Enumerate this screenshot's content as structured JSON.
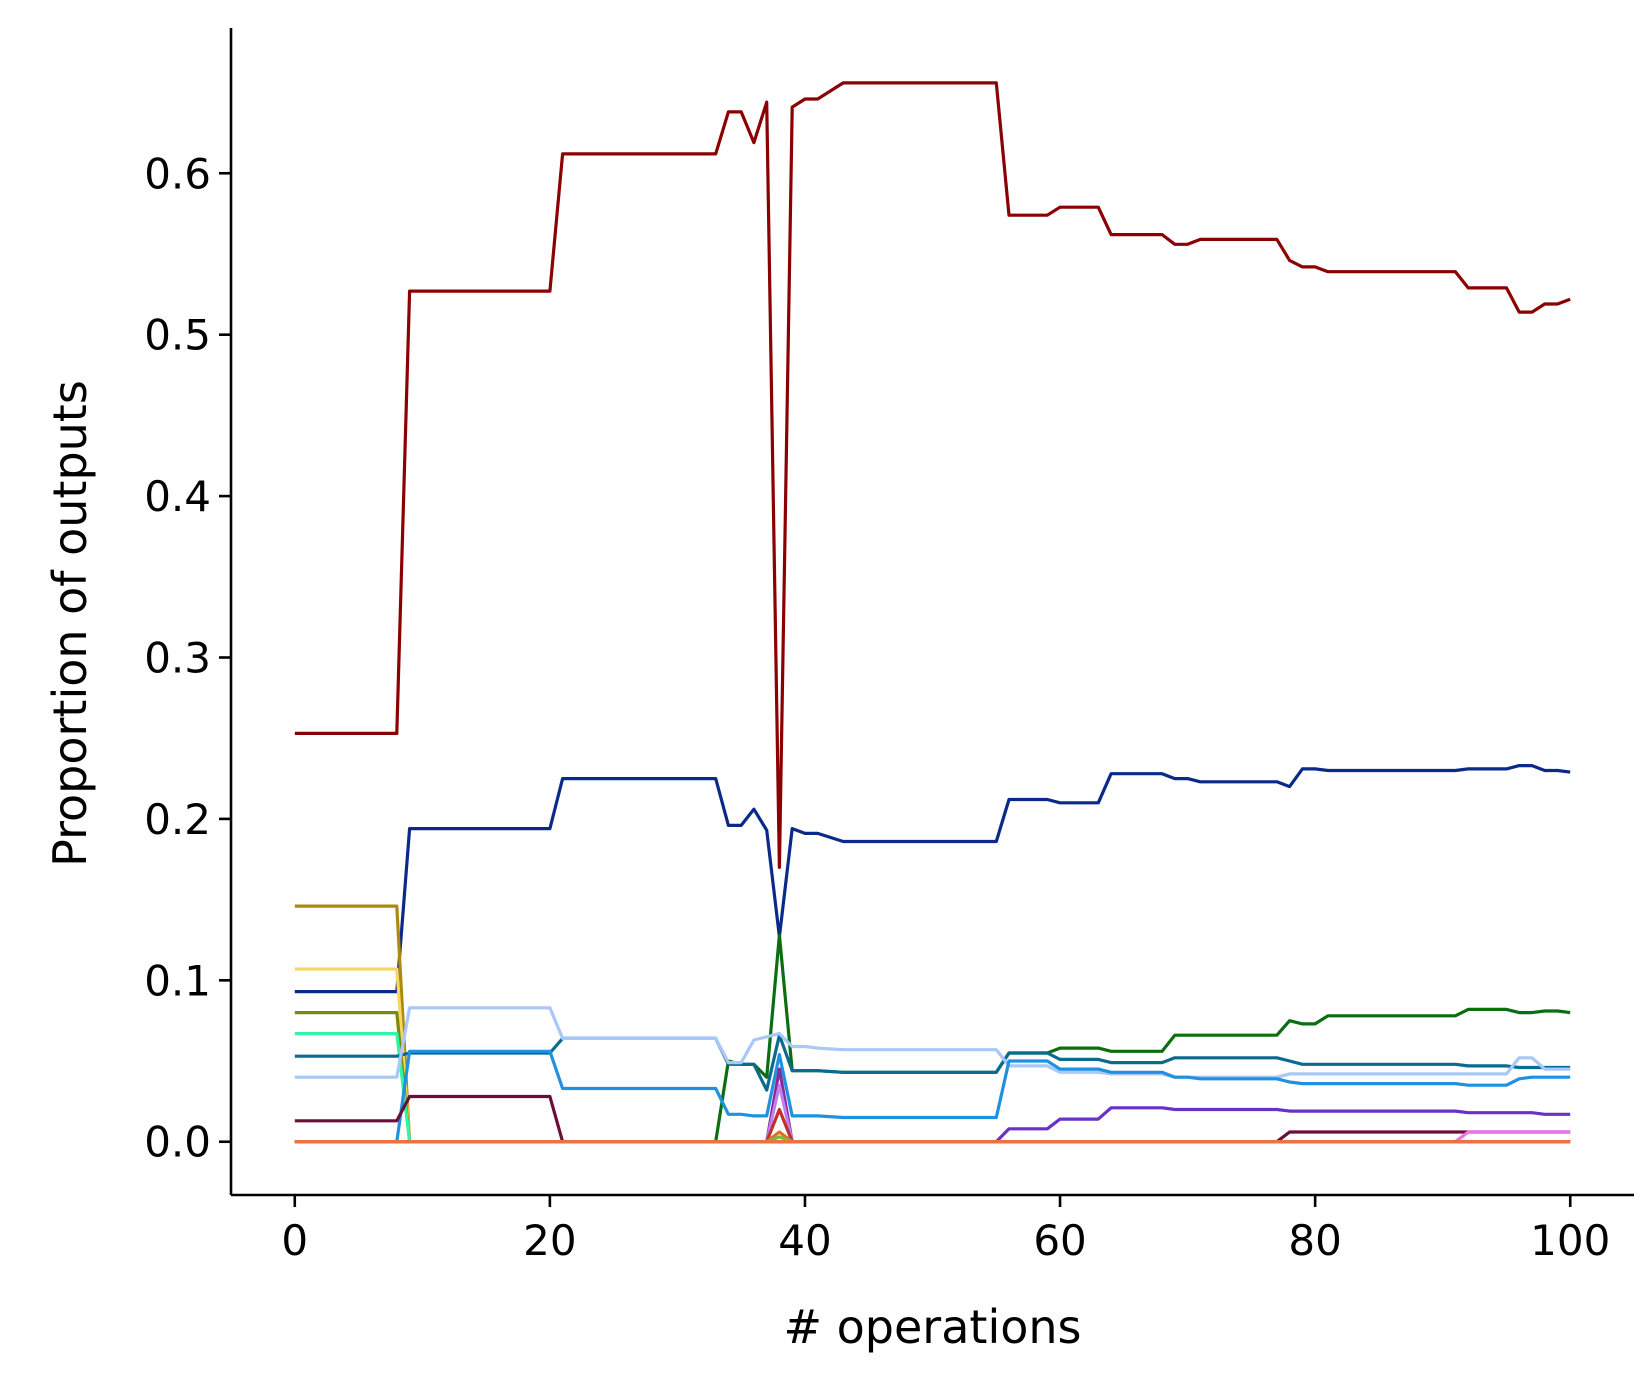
{
  "chart_data": {
    "type": "line",
    "title": "",
    "xlabel": "# operations",
    "ylabel": "Proportion of outputs",
    "xlim": [
      -5,
      105
    ],
    "ylim": [
      -0.033,
      0.69
    ],
    "xticks": [
      0,
      20,
      40,
      60,
      80,
      100
    ],
    "yticks": [
      0.0,
      0.1,
      0.2,
      0.3,
      0.4,
      0.5,
      0.6
    ],
    "xtick_labels": [
      "0",
      "20",
      "40",
      "60",
      "80",
      "100"
    ],
    "ytick_labels": [
      "0.0",
      "0.1",
      "0.2",
      "0.3",
      "0.4",
      "0.5",
      "0.6"
    ],
    "grid": false,
    "legend": "none",
    "series": [
      {
        "color": "#8b0000",
        "points": [
          [
            0,
            0.253
          ],
          [
            8,
            0.253
          ],
          [
            9,
            0.527
          ],
          [
            20,
            0.527
          ],
          [
            21,
            0.612
          ],
          [
            33,
            0.612
          ],
          [
            34,
            0.638
          ],
          [
            35,
            0.638
          ],
          [
            36,
            0.619
          ],
          [
            37,
            0.644
          ],
          [
            38,
            0.17
          ],
          [
            39,
            0.641
          ],
          [
            40,
            0.646
          ],
          [
            41,
            0.646
          ],
          [
            43,
            0.656
          ],
          [
            55,
            0.656
          ],
          [
            56,
            0.574
          ],
          [
            59,
            0.574
          ],
          [
            60,
            0.579
          ],
          [
            63,
            0.579
          ],
          [
            64,
            0.562
          ],
          [
            68,
            0.562
          ],
          [
            69,
            0.556
          ],
          [
            70,
            0.556
          ],
          [
            71,
            0.559
          ],
          [
            77,
            0.559
          ],
          [
            78,
            0.546
          ],
          [
            79,
            0.542
          ],
          [
            80,
            0.542
          ],
          [
            81,
            0.539
          ],
          [
            91,
            0.539
          ],
          [
            92,
            0.529
          ],
          [
            95,
            0.529
          ],
          [
            96,
            0.514
          ],
          [
            97,
            0.514
          ],
          [
            98,
            0.519
          ],
          [
            99,
            0.519
          ],
          [
            100,
            0.522
          ]
        ]
      },
      {
        "color": "#0a2a8a",
        "points": [
          [
            0,
            0.093
          ],
          [
            8,
            0.093
          ],
          [
            9,
            0.194
          ],
          [
            20,
            0.194
          ],
          [
            21,
            0.225
          ],
          [
            33,
            0.225
          ],
          [
            34,
            0.196
          ],
          [
            35,
            0.196
          ],
          [
            36,
            0.206
          ],
          [
            37,
            0.193
          ],
          [
            38,
            0.127
          ],
          [
            39,
            0.194
          ],
          [
            40,
            0.191
          ],
          [
            41,
            0.191
          ],
          [
            43,
            0.186
          ],
          [
            55,
            0.186
          ],
          [
            56,
            0.212
          ],
          [
            59,
            0.212
          ],
          [
            60,
            0.21
          ],
          [
            63,
            0.21
          ],
          [
            64,
            0.228
          ],
          [
            68,
            0.228
          ],
          [
            69,
            0.225
          ],
          [
            70,
            0.225
          ],
          [
            71,
            0.223
          ],
          [
            77,
            0.223
          ],
          [
            78,
            0.22
          ],
          [
            79,
            0.231
          ],
          [
            80,
            0.231
          ],
          [
            81,
            0.23
          ],
          [
            91,
            0.23
          ],
          [
            92,
            0.231
          ],
          [
            95,
            0.231
          ],
          [
            96,
            0.233
          ],
          [
            97,
            0.233
          ],
          [
            98,
            0.23
          ],
          [
            99,
            0.23
          ],
          [
            100,
            0.229
          ]
        ]
      },
      {
        "color": "#aa8a10",
        "points": [
          [
            0,
            0.146
          ],
          [
            8,
            0.146
          ],
          [
            9,
            0.0
          ],
          [
            100,
            0.0
          ]
        ]
      },
      {
        "color": "#f6d860",
        "points": [
          [
            0,
            0.107
          ],
          [
            8,
            0.107
          ],
          [
            9,
            0.0
          ],
          [
            100,
            0.0
          ]
        ]
      },
      {
        "color": "#7a8a10",
        "points": [
          [
            0,
            0.08
          ],
          [
            8,
            0.08
          ],
          [
            9,
            0.0
          ],
          [
            100,
            0.0
          ]
        ]
      },
      {
        "color": "#30f5a5",
        "points": [
          [
            0,
            0.067
          ],
          [
            8,
            0.067
          ],
          [
            9,
            0.0
          ],
          [
            100,
            0.0
          ]
        ]
      },
      {
        "color": "#0b6e10",
        "points": [
          [
            0,
            0.0
          ],
          [
            33,
            0.0
          ],
          [
            34,
            0.05
          ],
          [
            35,
            0.048
          ],
          [
            36,
            0.048
          ],
          [
            37,
            0.04
          ],
          [
            38,
            0.128
          ],
          [
            39,
            0.044
          ],
          [
            40,
            0.044
          ],
          [
            41,
            0.044
          ],
          [
            43,
            0.043
          ],
          [
            55,
            0.043
          ],
          [
            56,
            0.055
          ],
          [
            59,
            0.055
          ],
          [
            60,
            0.058
          ],
          [
            63,
            0.058
          ],
          [
            64,
            0.056
          ],
          [
            68,
            0.056
          ],
          [
            69,
            0.066
          ],
          [
            70,
            0.066
          ],
          [
            71,
            0.066
          ],
          [
            77,
            0.066
          ],
          [
            78,
            0.075
          ],
          [
            79,
            0.073
          ],
          [
            80,
            0.073
          ],
          [
            81,
            0.078
          ],
          [
            91,
            0.078
          ],
          [
            92,
            0.082
          ],
          [
            95,
            0.082
          ],
          [
            96,
            0.08
          ],
          [
            97,
            0.08
          ],
          [
            98,
            0.081
          ],
          [
            99,
            0.081
          ],
          [
            100,
            0.08
          ]
        ]
      },
      {
        "color": "#0a6a90",
        "points": [
          [
            0,
            0.053
          ],
          [
            8,
            0.053
          ],
          [
            9,
            0.055
          ],
          [
            20,
            0.055
          ],
          [
            21,
            0.064
          ],
          [
            33,
            0.064
          ],
          [
            34,
            0.048
          ],
          [
            35,
            0.048
          ],
          [
            36,
            0.048
          ],
          [
            37,
            0.032
          ],
          [
            38,
            0.066
          ],
          [
            39,
            0.044
          ],
          [
            40,
            0.044
          ],
          [
            41,
            0.044
          ],
          [
            43,
            0.043
          ],
          [
            55,
            0.043
          ],
          [
            56,
            0.055
          ],
          [
            59,
            0.055
          ],
          [
            60,
            0.051
          ],
          [
            63,
            0.051
          ],
          [
            64,
            0.049
          ],
          [
            68,
            0.049
          ],
          [
            69,
            0.052
          ],
          [
            70,
            0.052
          ],
          [
            71,
            0.052
          ],
          [
            77,
            0.052
          ],
          [
            78,
            0.05
          ],
          [
            79,
            0.048
          ],
          [
            80,
            0.048
          ],
          [
            81,
            0.048
          ],
          [
            91,
            0.048
          ],
          [
            92,
            0.047
          ],
          [
            95,
            0.047
          ],
          [
            96,
            0.046
          ],
          [
            97,
            0.046
          ],
          [
            98,
            0.046
          ],
          [
            99,
            0.046
          ],
          [
            100,
            0.046
          ]
        ]
      },
      {
        "color": "#a8c8f8",
        "points": [
          [
            0,
            0.04
          ],
          [
            8,
            0.04
          ],
          [
            9,
            0.083
          ],
          [
            20,
            0.083
          ],
          [
            21,
            0.064
          ],
          [
            33,
            0.064
          ],
          [
            34,
            0.049
          ],
          [
            35,
            0.049
          ],
          [
            36,
            0.063
          ],
          [
            37,
            0.065
          ],
          [
            38,
            0.067
          ],
          [
            39,
            0.059
          ],
          [
            40,
            0.059
          ],
          [
            41,
            0.058
          ],
          [
            43,
            0.057
          ],
          [
            55,
            0.057
          ],
          [
            56,
            0.047
          ],
          [
            59,
            0.047
          ],
          [
            60,
            0.043
          ],
          [
            63,
            0.043
          ],
          [
            64,
            0.042
          ],
          [
            68,
            0.042
          ],
          [
            69,
            0.04
          ],
          [
            70,
            0.04
          ],
          [
            71,
            0.04
          ],
          [
            77,
            0.04
          ],
          [
            78,
            0.042
          ],
          [
            79,
            0.042
          ],
          [
            80,
            0.042
          ],
          [
            81,
            0.042
          ],
          [
            91,
            0.042
          ],
          [
            92,
            0.042
          ],
          [
            95,
            0.042
          ],
          [
            96,
            0.052
          ],
          [
            97,
            0.052
          ],
          [
            98,
            0.045
          ],
          [
            99,
            0.045
          ],
          [
            100,
            0.045
          ]
        ]
      },
      {
        "color": "#2090e0",
        "points": [
          [
            0,
            0.0
          ],
          [
            8,
            0.0
          ],
          [
            9,
            0.056
          ],
          [
            20,
            0.056
          ],
          [
            21,
            0.033
          ],
          [
            33,
            0.033
          ],
          [
            34,
            0.017
          ],
          [
            35,
            0.017
          ],
          [
            36,
            0.016
          ],
          [
            37,
            0.016
          ],
          [
            38,
            0.054
          ],
          [
            39,
            0.016
          ],
          [
            40,
            0.016
          ],
          [
            41,
            0.016
          ],
          [
            43,
            0.015
          ],
          [
            55,
            0.015
          ],
          [
            56,
            0.05
          ],
          [
            59,
            0.05
          ],
          [
            60,
            0.045
          ],
          [
            63,
            0.045
          ],
          [
            64,
            0.043
          ],
          [
            68,
            0.043
          ],
          [
            69,
            0.04
          ],
          [
            70,
            0.04
          ],
          [
            71,
            0.039
          ],
          [
            77,
            0.039
          ],
          [
            78,
            0.037
          ],
          [
            79,
            0.036
          ],
          [
            80,
            0.036
          ],
          [
            81,
            0.036
          ],
          [
            91,
            0.036
          ],
          [
            92,
            0.035
          ],
          [
            95,
            0.035
          ],
          [
            96,
            0.039
          ],
          [
            97,
            0.04
          ],
          [
            98,
            0.04
          ],
          [
            99,
            0.04
          ],
          [
            100,
            0.04
          ]
        ]
      },
      {
        "color": "#6a1038",
        "points": [
          [
            0,
            0.013
          ],
          [
            8,
            0.013
          ],
          [
            9,
            0.028
          ],
          [
            20,
            0.028
          ],
          [
            21,
            0.0
          ],
          [
            77,
            0.0
          ],
          [
            78,
            0.006
          ],
          [
            100,
            0.006
          ]
        ]
      },
      {
        "color": "#6a30c8",
        "points": [
          [
            0,
            0.0
          ],
          [
            55,
            0.0
          ],
          [
            56,
            0.008
          ],
          [
            59,
            0.008
          ],
          [
            60,
            0.014
          ],
          [
            63,
            0.014
          ],
          [
            64,
            0.021
          ],
          [
            68,
            0.021
          ],
          [
            69,
            0.02
          ],
          [
            77,
            0.02
          ],
          [
            78,
            0.019
          ],
          [
            91,
            0.019
          ],
          [
            92,
            0.018
          ],
          [
            97,
            0.018
          ],
          [
            98,
            0.017
          ],
          [
            100,
            0.017
          ]
        ]
      },
      {
        "color": "#f070f0",
        "points": [
          [
            0,
            0.0
          ],
          [
            91,
            0.0
          ],
          [
            92,
            0.006
          ],
          [
            100,
            0.006
          ]
        ]
      },
      {
        "color": "#8a2a9a",
        "points": [
          [
            0,
            0.0
          ],
          [
            37,
            0.0
          ],
          [
            38,
            0.045
          ],
          [
            39,
            0.0
          ],
          [
            100,
            0.0
          ]
        ]
      },
      {
        "color": "#c080f0",
        "points": [
          [
            0,
            0.0
          ],
          [
            37,
            0.0
          ],
          [
            38,
            0.035
          ],
          [
            39,
            0.0
          ],
          [
            100,
            0.0
          ]
        ]
      },
      {
        "color": "#c03030",
        "points": [
          [
            0,
            0.0
          ],
          [
            37,
            0.0
          ],
          [
            38,
            0.02
          ],
          [
            39,
            0.0
          ],
          [
            100,
            0.0
          ]
        ]
      },
      {
        "color": "#e07020",
        "points": [
          [
            0,
            0.0
          ],
          [
            37,
            0.0
          ],
          [
            38,
            0.006
          ],
          [
            39,
            0.0
          ],
          [
            100,
            0.0
          ]
        ]
      },
      {
        "color": "#70c040",
        "points": [
          [
            0,
            0.0
          ],
          [
            37,
            0.0
          ],
          [
            38,
            0.003
          ],
          [
            39,
            0.0
          ],
          [
            100,
            0.0
          ]
        ]
      },
      {
        "color": "#f07040",
        "points": [
          [
            0,
            0.0
          ],
          [
            100,
            0.0
          ]
        ]
      }
    ]
  }
}
